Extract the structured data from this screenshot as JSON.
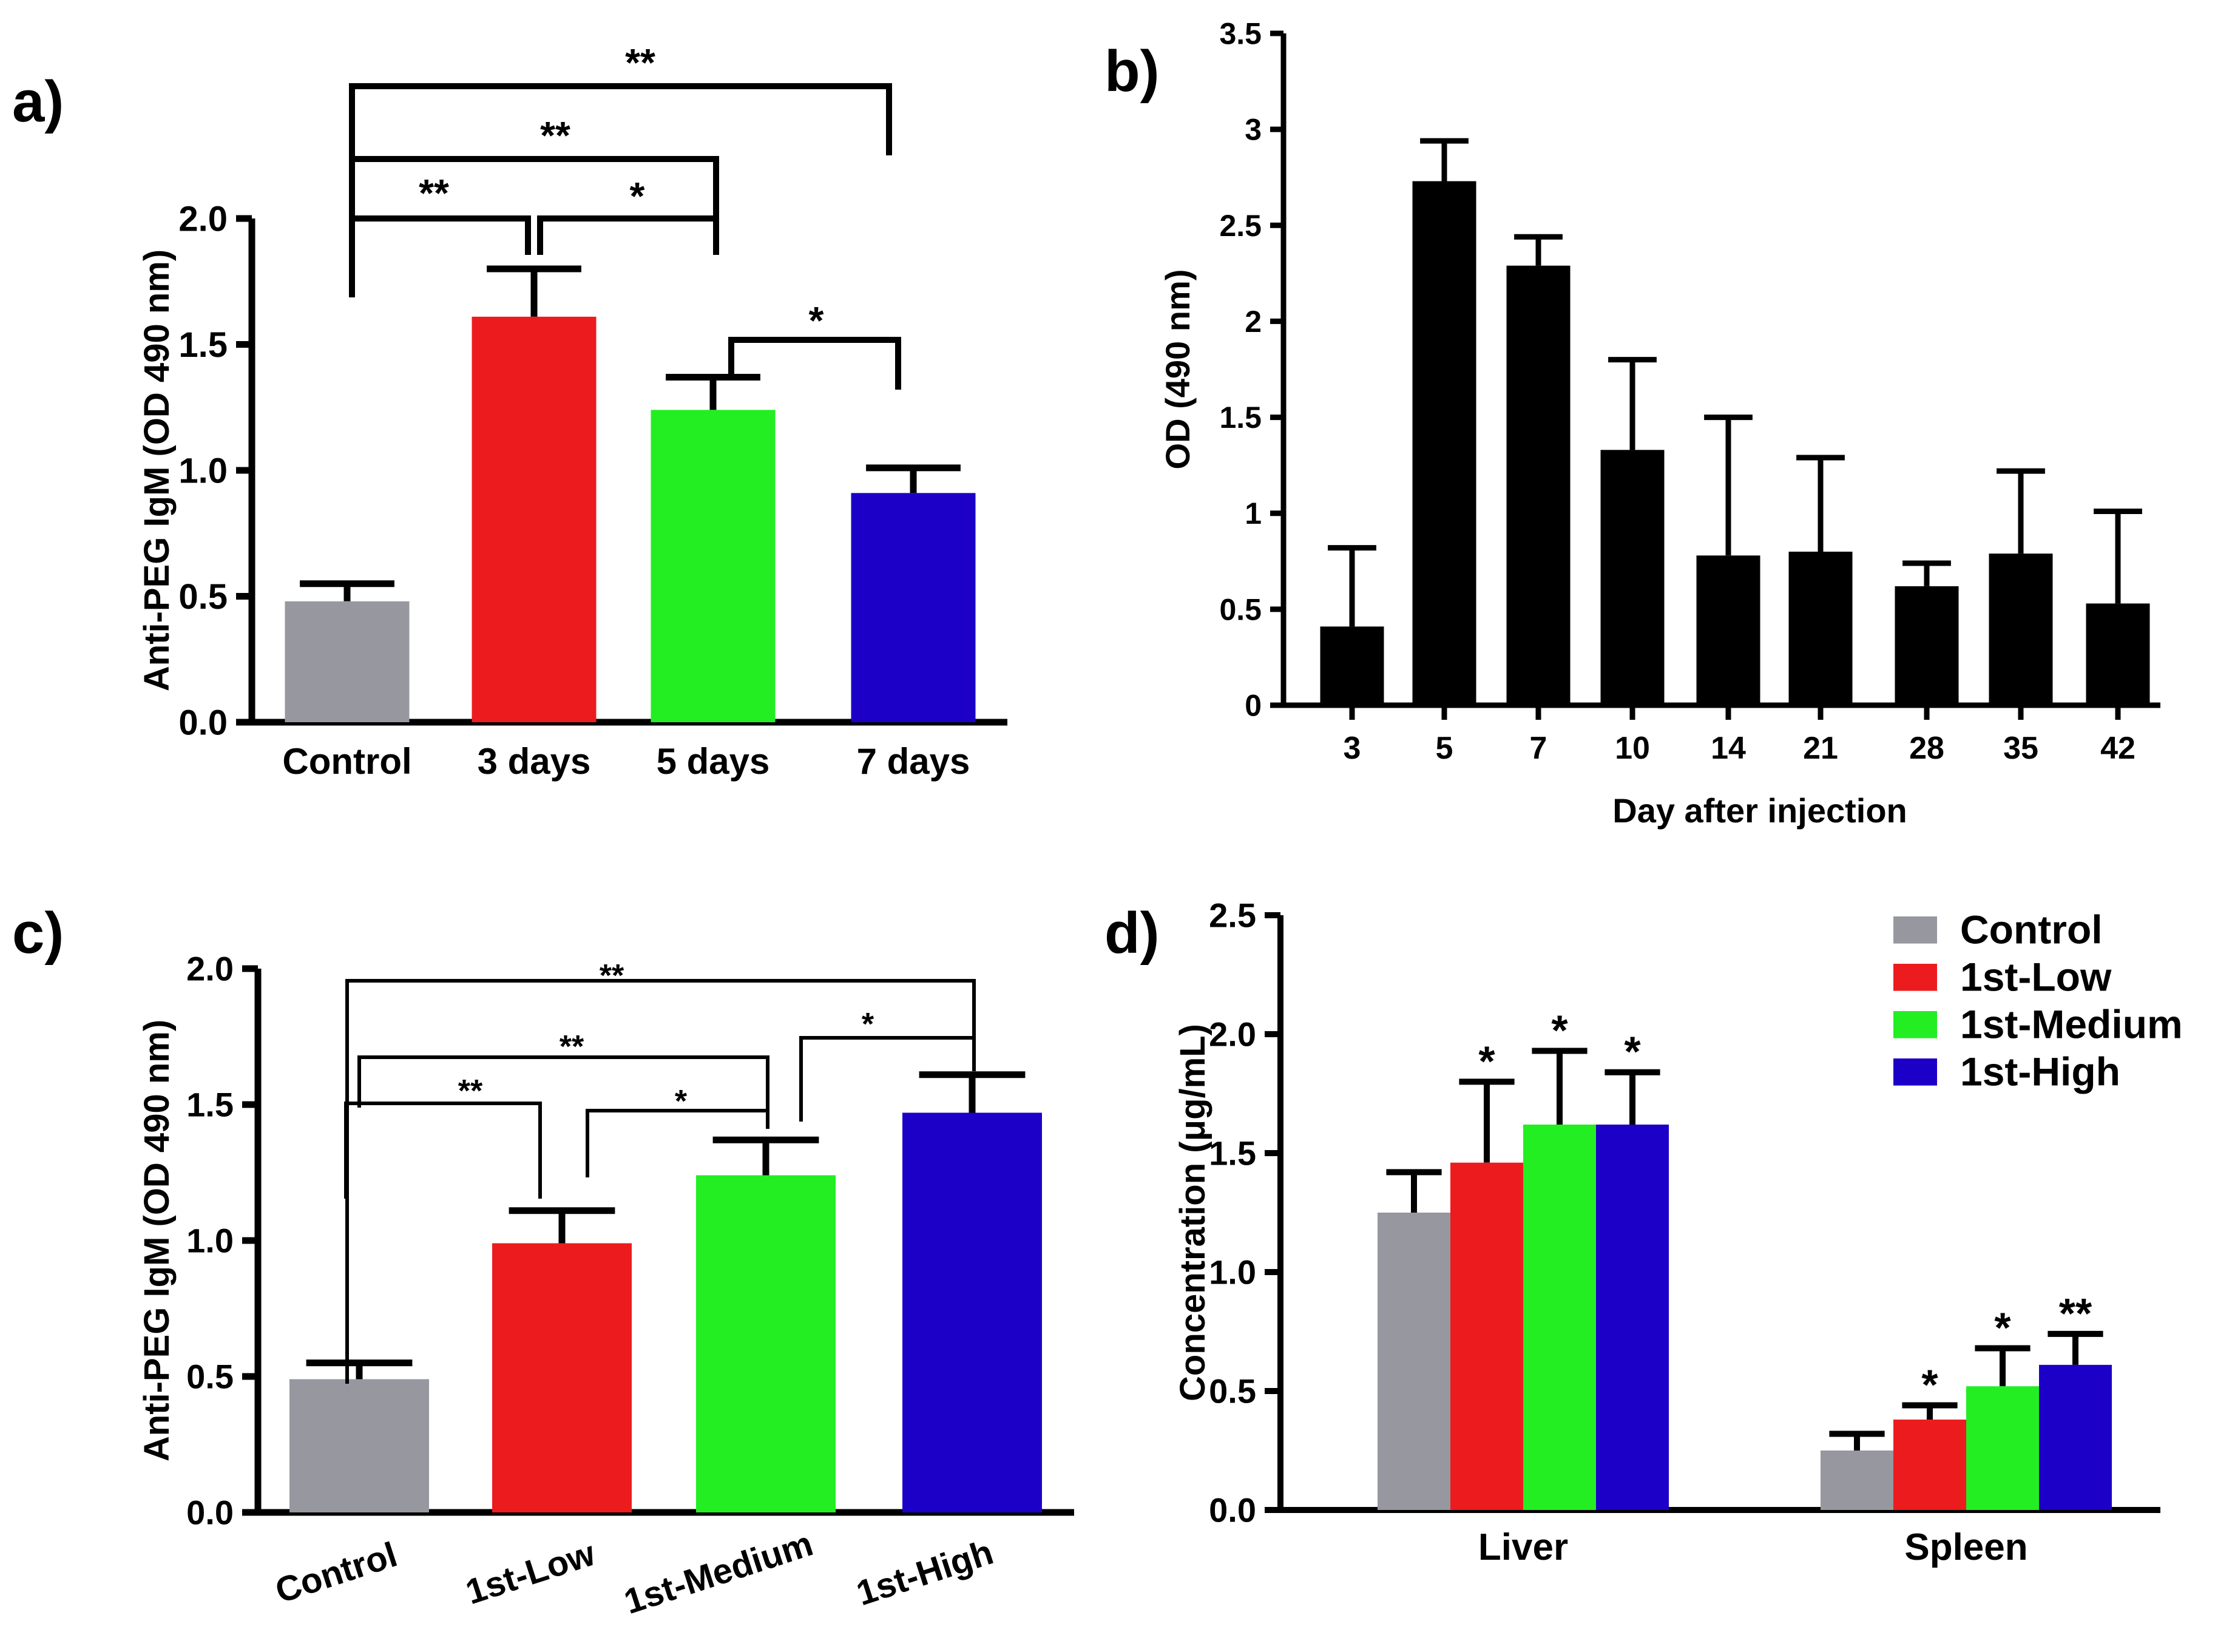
{
  "figure": {
    "background": "#ffffff",
    "axis_color": "#000000"
  },
  "chart_data": [
    {
      "id": "a",
      "panel_label": "a)",
      "type": "bar",
      "categories": [
        "Control",
        "3 days",
        "5 days",
        "7 days"
      ],
      "values": [
        0.48,
        1.61,
        1.24,
        0.91
      ],
      "errors": [
        0.07,
        0.19,
        0.13,
        0.1
      ],
      "colors": [
        "#97979f",
        "#ec1c1e",
        "#22ee22",
        "#1c00c8"
      ],
      "ylabel": "Anti-PEG IgM (OD 490 nm)",
      "xlabel": "",
      "ylim": [
        0,
        2.0
      ],
      "yticks": [
        "0.0",
        "0.5",
        "1.0",
        "1.5",
        "2.0"
      ],
      "ytick_values": [
        0,
        0.5,
        1.0,
        1.5,
        2.0
      ],
      "significance": [
        {
          "from": 0,
          "to": 1,
          "label": "**"
        },
        {
          "from": 1,
          "to": 2,
          "label": "*"
        },
        {
          "from": 0,
          "to": 2,
          "label": "**"
        },
        {
          "from": 0,
          "to": 3,
          "label": "**"
        },
        {
          "from": 2,
          "to": 3,
          "label": "*"
        }
      ]
    },
    {
      "id": "b",
      "panel_label": "b)",
      "type": "bar",
      "categories": [
        "3",
        "5",
        "7",
        "10",
        "14",
        "21",
        "28",
        "35",
        "42"
      ],
      "values": [
        0.41,
        2.73,
        2.29,
        1.33,
        0.78,
        0.8,
        0.62,
        0.79,
        0.53
      ],
      "errors": [
        0.41,
        0.21,
        0.15,
        0.47,
        0.72,
        0.49,
        0.12,
        0.43,
        0.48
      ],
      "colors": [
        "#000000"
      ],
      "ylabel": "OD (490 nm)",
      "xlabel": "Day after injection",
      "ylim": [
        0,
        3.5
      ],
      "yticks": [
        "0",
        "0.5",
        "1",
        "1.5",
        "2",
        "2.5",
        "3",
        "3.5"
      ],
      "ytick_values": [
        0,
        0.5,
        1,
        1.5,
        2,
        2.5,
        3,
        3.5
      ]
    },
    {
      "id": "c",
      "panel_label": "c)",
      "type": "bar",
      "categories": [
        "Control",
        "1st-Low",
        "1st-Medium",
        "1st-High"
      ],
      "values": [
        0.49,
        0.99,
        1.24,
        1.47
      ],
      "errors": [
        0.06,
        0.12,
        0.13,
        0.14
      ],
      "colors": [
        "#97979f",
        "#ec1c1e",
        "#22ee22",
        "#1c00c8"
      ],
      "ylabel": "Anti-PEG IgM (OD 490 nm)",
      "xlabel": "",
      "ylim": [
        0,
        2.0
      ],
      "yticks": [
        "0.0",
        "0.5",
        "1.0",
        "1.5",
        "2.0"
      ],
      "ytick_values": [
        0,
        0.5,
        1.0,
        1.5,
        2.0
      ],
      "significance": [
        {
          "from": 0,
          "to": 1,
          "label": "**"
        },
        {
          "from": 1,
          "to": 2,
          "label": "*"
        },
        {
          "from": 0,
          "to": 2,
          "label": "**"
        },
        {
          "from": 2,
          "to": 3,
          "label": "*"
        },
        {
          "from": 0,
          "to": 3,
          "label": "**"
        }
      ]
    },
    {
      "id": "d",
      "panel_label": "d)",
      "type": "bar",
      "categories": [
        "Liver",
        "Spleen"
      ],
      "series": [
        {
          "name": "Control",
          "color": "#97979f",
          "values": [
            1.25,
            0.25
          ],
          "errors": [
            0.17,
            0.07
          ],
          "stars": [
            "",
            ""
          ]
        },
        {
          "name": "1st-Low",
          "color": "#ec1c1e",
          "values": [
            1.46,
            0.38
          ],
          "errors": [
            0.34,
            0.06
          ],
          "stars": [
            "*",
            "*"
          ]
        },
        {
          "name": "1st-Medium",
          "color": "#22ee22",
          "values": [
            1.62,
            0.52
          ],
          "errors": [
            0.31,
            0.16
          ],
          "stars": [
            "*",
            "*"
          ]
        },
        {
          "name": "1st-High",
          "color": "#1c00c8",
          "values": [
            1.62,
            0.61
          ],
          "errors": [
            0.22,
            0.13
          ],
          "stars": [
            "*",
            "**"
          ]
        }
      ],
      "ylabel": "Concentration (μg/mL)",
      "xlabel": "",
      "ylim": [
        0,
        2.5
      ],
      "yticks": [
        "0.0",
        "0.5",
        "1.0",
        "1.5",
        "2.0",
        "2.5"
      ],
      "ytick_values": [
        0,
        0.5,
        1.0,
        1.5,
        2.0,
        2.5
      ],
      "legend_position": "top-right"
    }
  ]
}
